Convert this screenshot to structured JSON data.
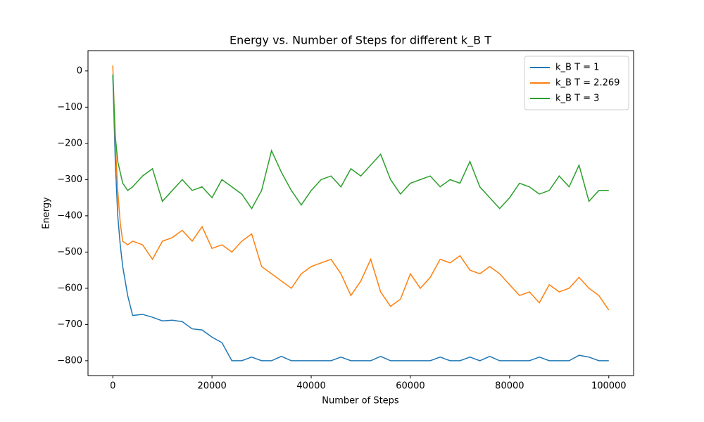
{
  "chart_data": {
    "type": "line",
    "title": "Energy vs. Number of Steps for different k_B T",
    "x_label": "Number of Steps",
    "y_label": "Energy",
    "x": [
      0,
      500,
      1000,
      1500,
      2000,
      3000,
      4000,
      6000,
      8000,
      10000,
      12000,
      14000,
      16000,
      18000,
      20000,
      22000,
      24000,
      26000,
      28000,
      30000,
      32000,
      34000,
      36000,
      38000,
      40000,
      42000,
      44000,
      46000,
      48000,
      50000,
      52000,
      54000,
      56000,
      58000,
      60000,
      62000,
      64000,
      66000,
      68000,
      70000,
      72000,
      74000,
      76000,
      78000,
      80000,
      82000,
      84000,
      86000,
      88000,
      90000,
      92000,
      94000,
      96000,
      98000,
      100000
    ],
    "series": [
      {
        "name": "k_B T = 1",
        "color": "#1f77b4",
        "values": [
          -10,
          -250,
          -400,
          -480,
          -540,
          -620,
          -675,
          -672,
          -680,
          -690,
          -688,
          -692,
          -712,
          -715,
          -735,
          -750,
          -800,
          -800,
          -790,
          -800,
          -800,
          -788,
          -800,
          -800,
          -800,
          -800,
          -800,
          -790,
          -800,
          -800,
          -800,
          -788,
          -800,
          -800,
          -800,
          -800,
          -800,
          -790,
          -800,
          -800,
          -790,
          -800,
          -788,
          -800,
          -800,
          -800,
          -800,
          -790,
          -800,
          -800,
          -800,
          -785,
          -790,
          -800,
          -800
        ]
      },
      {
        "name": "k_B T = 2.269",
        "color": "#ff7f0e",
        "values": [
          15,
          -200,
          -330,
          -420,
          -470,
          -480,
          -470,
          -480,
          -520,
          -470,
          -460,
          -440,
          -470,
          -430,
          -490,
          -480,
          -500,
          -470,
          -450,
          -540,
          -560,
          -580,
          -600,
          -560,
          -540,
          -530,
          -520,
          -560,
          -620,
          -580,
          -520,
          -610,
          -650,
          -630,
          -560,
          -600,
          -570,
          -520,
          -530,
          -510,
          -550,
          -560,
          -540,
          -560,
          -590,
          -620,
          -610,
          -640,
          -590,
          -610,
          -600,
          -570,
          -600,
          -620,
          -660
        ]
      },
      {
        "name": "k_B T = 3",
        "color": "#2ca02c",
        "values": [
          -10,
          -180,
          -250,
          -280,
          -310,
          -330,
          -320,
          -290,
          -270,
          -360,
          -330,
          -300,
          -330,
          -320,
          -350,
          -300,
          -320,
          -340,
          -380,
          -330,
          -220,
          -280,
          -330,
          -370,
          -330,
          -300,
          -290,
          -320,
          -270,
          -290,
          -260,
          -230,
          -300,
          -340,
          -310,
          -300,
          -290,
          -320,
          -300,
          -310,
          -250,
          -320,
          -350,
          -380,
          -350,
          -310,
          -320,
          -340,
          -330,
          -290,
          -320,
          -260,
          -360,
          -330,
          -330
        ]
      }
    ],
    "xlim": [
      -5000,
      105000
    ],
    "ylim": [
      -841,
      56
    ],
    "xticks": [
      0,
      20000,
      40000,
      60000,
      80000,
      100000
    ],
    "yticks": [
      {
        "value": -800,
        "label": "−800"
      },
      {
        "value": -700,
        "label": "−700"
      },
      {
        "value": -600,
        "label": "−600"
      },
      {
        "value": -500,
        "label": "−500"
      },
      {
        "value": -400,
        "label": "−400"
      },
      {
        "value": -300,
        "label": "−300"
      },
      {
        "value": -200,
        "label": "−200"
      },
      {
        "value": -100,
        "label": "−100"
      },
      0
    ],
    "grid": false,
    "legend": "upper right"
  }
}
